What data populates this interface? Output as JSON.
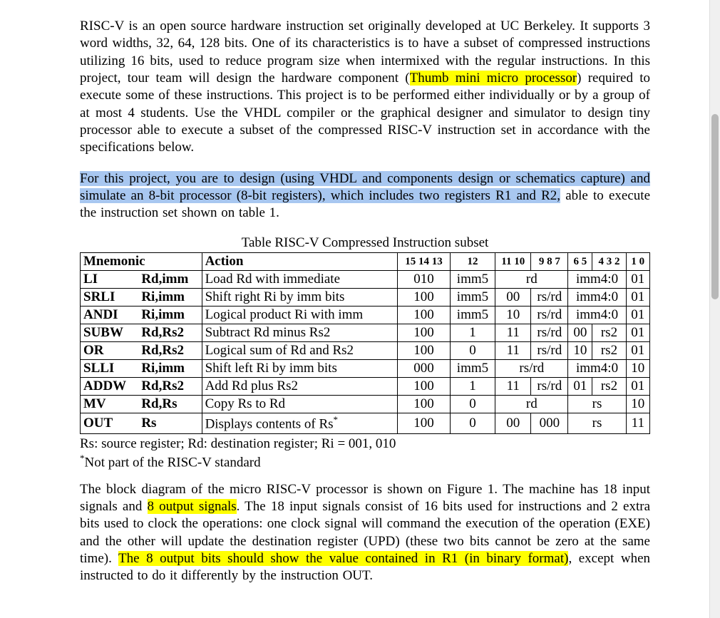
{
  "p1": {
    "a": "RISC-V is an open source hardware instruction set originally developed at UC Berkeley. It supports 3 word widths, 32, 64, 128 bits. One of its characteristics is to have a subset of compressed instructions utilizing 16 bits, used to reduce program size when intermixed with the regular instructions. In this project, tour team will design the hardware component (",
    "b": "Thumb mini micro processor",
    "c": ") required to execute some of these instructions. This project is to be performed either individually or by a group of at most 4 students. Use the VHDL compiler or the graphical designer and simulator to design tiny processor able to execute a subset of the compressed RISC-V instruction set in accordance with the specifications below."
  },
  "p2": {
    "a": "For this project, you are to design (using VHDL and components design or schematics capture) and simulate an 8-bit processor (8-bit registers), which includes two registers R1 and R2,",
    "b": " able to execute the instruction set shown on table 1."
  },
  "caption": "Table RISC-V Compressed Instruction subset",
  "headers": {
    "mnemonic": "Mnemonic",
    "action": "Action",
    "b15": "15 14 13",
    "b12": "12",
    "b11": "11 10",
    "b98": "9 8 7",
    "b65": "6 5",
    "b432": "4 3 2",
    "b10": "1 0"
  },
  "rows": [
    {
      "mn": "LI",
      "ops": "Rd,imm",
      "act": "Load Rd with immediate",
      "enc": [
        "010",
        "imm5",
        "rd",
        "",
        "imm4:0",
        "01"
      ],
      "pat": "A"
    },
    {
      "mn": "SRLI",
      "ops": "Ri,imm",
      "act": "Shift right Ri by imm bits",
      "enc": [
        "100",
        "imm5",
        "00",
        "rs/rd",
        "imm4:0",
        "01"
      ],
      "pat": "B"
    },
    {
      "mn": "ANDI",
      "ops": "Ri,imm",
      "act": "Logical product Ri with imm",
      "enc": [
        "100",
        "imm5",
        "10",
        "rs/rd",
        "imm4:0",
        "01"
      ],
      "pat": "B"
    },
    {
      "mn": "SUBW",
      "ops": "Rd,Rs2",
      "act": "Subtract Rd minus Rs2",
      "enc": [
        "100",
        "1",
        "11",
        "rs/rd",
        "00",
        "rs2",
        "01"
      ],
      "pat": "C"
    },
    {
      "mn": "OR",
      "ops": "Rd,Rs2",
      "act": "Logical sum of Rd and Rs2",
      "enc": [
        "100",
        "0",
        "11",
        "rs/rd",
        "10",
        "rs2",
        "01"
      ],
      "pat": "C"
    },
    {
      "mn": "SLLI",
      "ops": "Ri,imm",
      "act": "Shift left Ri by imm bits",
      "enc": [
        "000",
        "imm5",
        "rs/rd",
        "",
        "imm4:0",
        "10"
      ],
      "pat": "A"
    },
    {
      "mn": "ADDW",
      "ops": "Rd,Rs2",
      "act": "Add Rd plus Rs2",
      "enc": [
        "100",
        "1",
        "11",
        "rs/rd",
        "01",
        "rs2",
        "01"
      ],
      "pat": "C"
    },
    {
      "mn": "MV",
      "ops": "Rd,Rs",
      "act": "Copy Rs to Rd",
      "enc": [
        "100",
        "0",
        "rd",
        "",
        "rs",
        "10"
      ],
      "pat": "A"
    },
    {
      "mn": "OUT",
      "ops": "Rs",
      "act": "Displays contents of Rs",
      "enc": [
        "100",
        "0",
        "00",
        "000",
        "rs",
        "11"
      ],
      "pat": "D",
      "star": true
    }
  ],
  "legend": "Rs: source register; Rd: destination register; Ri = 001, 010",
  "footnote": "Not part of the RISC-V standard",
  "p3": {
    "a": "The block diagram of the micro RISC-V processor is shown on Figure 1. The machine has 18 input signals and ",
    "b": "8 output signals",
    "c": ". The 18 input signals consist of 16 bits used for instructions and 2 extra bits used to clock the operations: one clock signal will command the execution of the operation (EXE) and the other will update the destination register (UPD) (these two bits cannot be zero at the same time). ",
    "d": "The 8 output bits should show the value contained in R1 (in binary format)",
    "e": ", except when instructed to do it differently by the instruction OUT."
  }
}
